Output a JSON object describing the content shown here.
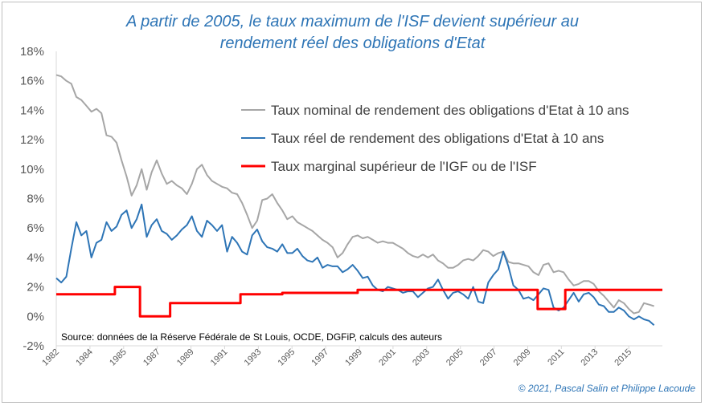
{
  "title_line1": "A partir de 2005, le taux maximum de l'ISF devient supérieur au",
  "title_line2": "rendement réel des obligations d'Etat",
  "source": "Source: données de la Réserve Fédérale de St Louis, OCDE, DGFiP, calculs des auteurs",
  "copyright": "© 2021, Pascal Salin et Philippe Lacoude",
  "chart_data": {
    "type": "line",
    "ylim": [
      -2,
      18
    ],
    "xlim": [
      1982,
      2018.2
    ],
    "y_ticks": [
      "18%",
      "16%",
      "14%",
      "12%",
      "10%",
      "8%",
      "6%",
      "4%",
      "2%",
      "0%",
      "-2%"
    ],
    "x_ticks": [
      "1982",
      "1984",
      "1985",
      "1987",
      "1989",
      "1991",
      "1993",
      "1995",
      "1997",
      "1999",
      "2001",
      "2003",
      "2005",
      "2007",
      "2009",
      "2011",
      "2013",
      "2015"
    ],
    "grid": false,
    "legend_position": "top-right",
    "series": [
      {
        "name": "Taux nominal de rendement des obligations d'Etat à 10 ans",
        "color": "#a6a6a6",
        "x": [
          1982.0,
          1982.3,
          1982.6,
          1982.9,
          1983.2,
          1983.5,
          1983.8,
          1984.1,
          1984.4,
          1984.7,
          1985.0,
          1985.3,
          1985.6,
          1985.9,
          1986.2,
          1986.5,
          1986.8,
          1987.1,
          1987.4,
          1987.7,
          1988.0,
          1988.3,
          1988.6,
          1988.9,
          1989.2,
          1989.5,
          1989.8,
          1990.1,
          1990.4,
          1990.7,
          1991.0,
          1991.3,
          1991.6,
          1991.9,
          1992.2,
          1992.5,
          1992.8,
          1993.1,
          1993.4,
          1993.7,
          1994.0,
          1994.3,
          1994.6,
          1994.9,
          1995.2,
          1995.5,
          1995.8,
          1996.1,
          1996.4,
          1996.7,
          1997.0,
          1997.3,
          1997.6,
          1997.9,
          1998.2,
          1998.5,
          1998.8,
          1999.1,
          1999.4,
          1999.7,
          2000.0,
          2000.3,
          2000.6,
          2000.9,
          2001.2,
          2001.5,
          2001.8,
          2002.1,
          2002.4,
          2002.7,
          2003.0,
          2003.3,
          2003.6,
          2003.9,
          2004.2,
          2004.5,
          2004.8,
          2005.1,
          2005.4,
          2005.7,
          2006.0,
          2006.3,
          2006.6,
          2006.9,
          2007.2,
          2007.5,
          2007.8,
          2008.1,
          2008.4,
          2008.7,
          2009.0,
          2009.3,
          2009.6,
          2009.9,
          2010.2,
          2010.5,
          2010.8,
          2011.1,
          2011.4,
          2011.7,
          2012.0,
          2012.3,
          2012.6,
          2012.9,
          2013.2,
          2013.5,
          2013.8,
          2014.1,
          2014.4,
          2014.7,
          2015.0,
          2015.3,
          2015.6,
          2015.9,
          2016.2,
          2016.5,
          2016.8,
          2017.1,
          2017.4,
          2017.7
        ],
        "values": [
          16.4,
          16.3,
          16.0,
          15.8,
          14.9,
          14.7,
          14.3,
          13.9,
          14.1,
          13.8,
          12.3,
          12.2,
          11.8,
          10.6,
          9.5,
          8.2,
          8.9,
          10.0,
          8.6,
          9.8,
          10.6,
          9.7,
          9.0,
          9.2,
          8.9,
          8.7,
          8.3,
          9.0,
          10.0,
          10.3,
          9.6,
          9.2,
          9.0,
          8.8,
          8.7,
          8.4,
          8.3,
          7.7,
          6.9,
          6.0,
          6.5,
          7.9,
          8.0,
          8.3,
          7.7,
          7.2,
          6.6,
          6.8,
          6.4,
          6.2,
          6.0,
          5.8,
          5.5,
          5.2,
          5.0,
          4.7,
          4.0,
          4.3,
          4.9,
          5.4,
          5.5,
          5.3,
          5.4,
          5.2,
          5.0,
          5.1,
          5.0,
          5.0,
          4.8,
          4.6,
          4.3,
          4.1,
          4.0,
          4.2,
          4.0,
          4.2,
          3.8,
          3.6,
          3.3,
          3.3,
          3.5,
          3.8,
          3.9,
          3.8,
          4.1,
          4.5,
          4.4,
          4.1,
          4.3,
          4.4,
          3.7,
          3.6,
          3.6,
          3.5,
          3.4,
          3.0,
          2.8,
          3.5,
          3.6,
          3.0,
          3.1,
          3.0,
          2.5,
          2.1,
          2.2,
          2.4,
          2.4,
          2.2,
          1.7,
          1.4,
          1.0,
          0.6,
          1.1,
          0.9,
          0.5,
          0.2,
          0.3,
          0.9,
          0.8,
          0.7
        ]
      },
      {
        "name": "Taux réel de rendement des obligations d'Etat à 10 ans",
        "color": "#2e75b6",
        "x": [
          1982.0,
          1982.3,
          1982.6,
          1982.9,
          1983.2,
          1983.5,
          1983.8,
          1984.1,
          1984.4,
          1984.7,
          1985.0,
          1985.3,
          1985.6,
          1985.9,
          1986.2,
          1986.5,
          1986.8,
          1987.1,
          1987.4,
          1987.7,
          1988.0,
          1988.3,
          1988.6,
          1988.9,
          1989.2,
          1989.5,
          1989.8,
          1990.1,
          1990.4,
          1990.7,
          1991.0,
          1991.3,
          1991.6,
          1991.9,
          1992.2,
          1992.5,
          1992.8,
          1993.1,
          1993.4,
          1993.7,
          1994.0,
          1994.3,
          1994.6,
          1994.9,
          1995.2,
          1995.5,
          1995.8,
          1996.1,
          1996.4,
          1996.7,
          1997.0,
          1997.3,
          1997.6,
          1997.9,
          1998.2,
          1998.5,
          1998.8,
          1999.1,
          1999.4,
          1999.7,
          2000.0,
          2000.3,
          2000.6,
          2000.9,
          2001.2,
          2001.5,
          2001.8,
          2002.1,
          2002.4,
          2002.7,
          2003.0,
          2003.3,
          2003.6,
          2003.9,
          2004.2,
          2004.5,
          2004.8,
          2005.1,
          2005.4,
          2005.7,
          2006.0,
          2006.3,
          2006.6,
          2006.9,
          2007.2,
          2007.5,
          2007.8,
          2008.1,
          2008.4,
          2008.7,
          2009.0,
          2009.3,
          2009.6,
          2009.9,
          2010.2,
          2010.5,
          2010.8,
          2011.1,
          2011.4,
          2011.7,
          2012.0,
          2012.3,
          2012.6,
          2012.9,
          2013.2,
          2013.5,
          2013.8,
          2014.1,
          2014.4,
          2014.7,
          2015.0,
          2015.3,
          2015.6,
          2015.9,
          2016.2,
          2016.5,
          2016.8,
          2017.1,
          2017.4,
          2017.7
        ],
        "values": [
          2.6,
          2.3,
          2.7,
          4.6,
          6.4,
          5.5,
          5.8,
          4.0,
          5.0,
          5.2,
          6.4,
          5.8,
          6.1,
          6.9,
          7.2,
          6.0,
          6.6,
          7.6,
          5.4,
          6.2,
          6.6,
          5.8,
          5.6,
          5.2,
          5.5,
          5.9,
          6.2,
          6.8,
          5.8,
          5.4,
          6.5,
          6.2,
          5.8,
          6.2,
          4.4,
          5.4,
          5.0,
          4.4,
          4.2,
          5.5,
          5.9,
          5.1,
          4.7,
          4.6,
          4.4,
          4.9,
          4.3,
          4.3,
          4.6,
          4.1,
          3.8,
          3.7,
          4.0,
          3.3,
          3.5,
          3.4,
          3.4,
          3.0,
          3.2,
          3.5,
          3.1,
          2.6,
          2.7,
          2.1,
          1.8,
          1.7,
          2.0,
          1.9,
          1.8,
          1.6,
          1.7,
          1.7,
          1.3,
          1.6,
          1.9,
          2.0,
          2.5,
          1.8,
          1.2,
          1.6,
          1.7,
          1.5,
          1.2,
          2.0,
          1.0,
          0.9,
          2.3,
          2.8,
          3.2,
          4.4,
          3.4,
          2.1,
          1.8,
          1.2,
          1.3,
          1.1,
          1.5,
          1.9,
          1.8,
          0.6,
          0.4,
          0.6,
          1.1,
          1.6,
          1.0,
          1.5,
          1.6,
          1.3,
          0.8,
          0.7,
          0.3,
          0.3,
          0.6,
          0.4,
          0.0,
          -0.2,
          0.0,
          -0.2,
          -0.3,
          -0.6
        ]
      },
      {
        "name": "Taux marginal supérieur de l'IGF ou de l'ISF",
        "color": "#ff0000",
        "step": true,
        "x": [
          1982,
          1985.5,
          1987.0,
          1988.8,
          1993.0,
          1995.5,
          2000.0,
          2008.0,
          2010.75,
          2012.0,
          2012.4,
          2018.2
        ],
        "values": [
          1.5,
          2.0,
          0.0,
          0.9,
          1.5,
          1.6,
          1.8,
          1.8,
          0.5,
          0.5,
          1.8,
          1.8
        ]
      }
    ]
  }
}
